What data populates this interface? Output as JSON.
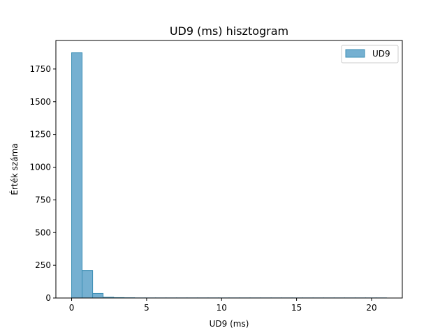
{
  "chart_data": {
    "type": "bar",
    "title": "UD9 (ms) hisztogram",
    "xlabel": "UD9 (ms)",
    "ylabel": "Érték száma",
    "xlim": [
      -1.05,
      22.05
    ],
    "ylim": [
      0,
      1968
    ],
    "xticks": [
      0,
      5,
      10,
      15,
      20
    ],
    "yticks": [
      0,
      250,
      500,
      750,
      1000,
      1250,
      1500,
      1750
    ],
    "bin_edges": [
      0,
      0.7,
      1.4,
      2.1,
      2.8,
      3.5,
      4.2,
      4.9,
      5.6,
      6.3,
      7.0,
      7.7,
      8.4,
      9.1,
      9.8,
      10.5,
      11.2,
      11.9,
      12.6,
      13.3,
      14.0,
      14.7,
      15.4,
      16.1,
      16.8,
      17.5,
      18.2,
      18.9,
      19.6,
      20.3,
      21.0
    ],
    "series": [
      {
        "name": "UD9",
        "values": [
          1874,
          210,
          35,
          6,
          3,
          2,
          1,
          1,
          1,
          1,
          1,
          1,
          1,
          1,
          1,
          1,
          1,
          1,
          1,
          1,
          1,
          1,
          1,
          1,
          1,
          1,
          1,
          1,
          1,
          1
        ]
      }
    ],
    "legend": "top-right",
    "grid": false,
    "colors": {
      "bar_fill": "#75b0d1",
      "bar_edge": "#3d8fb5"
    }
  }
}
